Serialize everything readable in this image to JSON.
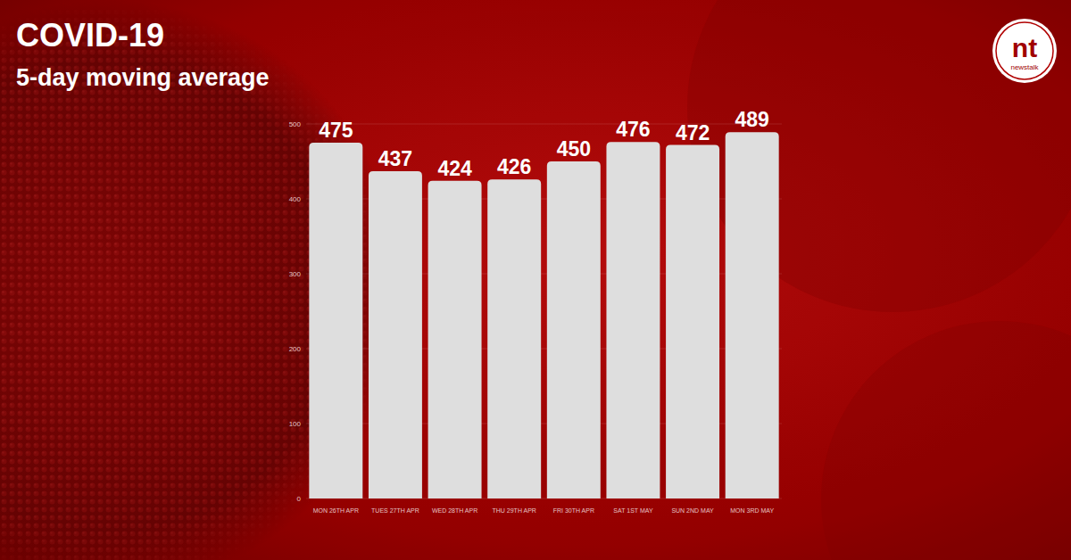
{
  "chart_data": {
    "type": "bar",
    "title": "COVID-19",
    "subtitle": "5-day moving average",
    "annotations": [
      "nt",
      "newstalk"
    ],
    "categories": [
      "MON 26TH APR",
      "TUES 27TH APR",
      "WED 28TH APR",
      "THU 29TH APR",
      "FRI 30TH APR",
      "SAT 1ST MAY",
      "SUN 2ND MAY",
      "MON 3RD MAY"
    ],
    "values": [
      475,
      437,
      424,
      426,
      450,
      476,
      472,
      489
    ],
    "color": "#dedede",
    "ylim": [
      0,
      500
    ],
    "yticks": [
      0,
      100,
      200,
      300,
      400,
      500
    ],
    "grid": true,
    "data_labels": true
  }
}
